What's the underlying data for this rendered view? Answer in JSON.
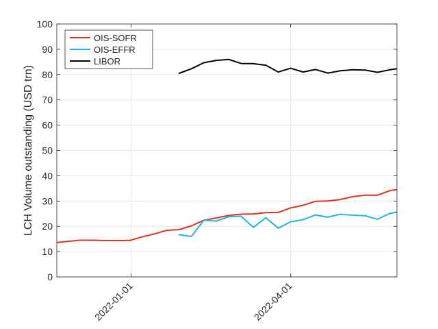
{
  "chart_data": {
    "type": "line",
    "ylabel": "LCH Volume outstanding (USD trn)",
    "xlabel": "",
    "ylim": [
      0,
      100
    ],
    "yticks": [
      0,
      10,
      20,
      30,
      40,
      50,
      60,
      70,
      80,
      90,
      100
    ],
    "xlim": [
      "2021-11-20",
      "2022-05-31"
    ],
    "xticks": [
      "2022-01-01",
      "2022-04-01"
    ],
    "grid": true,
    "legend_position": "top-left",
    "series": [
      {
        "name": "OIS-SOFR",
        "color": "#e0301e",
        "points": [
          [
            "2021-11-19",
            13.5
          ],
          [
            "2021-11-26",
            14.0
          ],
          [
            "2021-12-03",
            14.5
          ],
          [
            "2021-12-10",
            14.5
          ],
          [
            "2021-12-17",
            14.4
          ],
          [
            "2021-12-24",
            14.4
          ],
          [
            "2021-12-31",
            14.4
          ],
          [
            "2022-01-07",
            15.8
          ],
          [
            "2022-01-14",
            17.0
          ],
          [
            "2022-01-21",
            18.4
          ],
          [
            "2022-01-28",
            18.7
          ],
          [
            "2022-02-04",
            20.2
          ],
          [
            "2022-02-11",
            22.4
          ],
          [
            "2022-02-18",
            23.3
          ],
          [
            "2022-02-25",
            24.3
          ],
          [
            "2022-03-04",
            24.8
          ],
          [
            "2022-03-11",
            24.9
          ],
          [
            "2022-03-18",
            25.4
          ],
          [
            "2022-03-25",
            25.5
          ],
          [
            "2022-04-01",
            27.3
          ],
          [
            "2022-04-08",
            28.3
          ],
          [
            "2022-04-15",
            29.9
          ],
          [
            "2022-04-22",
            30.0
          ],
          [
            "2022-04-29",
            30.6
          ],
          [
            "2022-05-06",
            31.7
          ],
          [
            "2022-05-13",
            32.3
          ],
          [
            "2022-05-20",
            32.3
          ],
          [
            "2022-05-27",
            34.1
          ],
          [
            "2022-06-03",
            34.9
          ]
        ]
      },
      {
        "name": "OIS-EFFR",
        "color": "#1fb4e6",
        "points": [
          [
            "2022-01-28",
            16.7
          ],
          [
            "2022-02-04",
            16.0
          ],
          [
            "2022-02-11",
            22.4
          ],
          [
            "2022-02-18",
            22.1
          ],
          [
            "2022-02-25",
            23.8
          ],
          [
            "2022-03-04",
            24.0
          ],
          [
            "2022-03-11",
            19.6
          ],
          [
            "2022-03-18",
            23.4
          ],
          [
            "2022-03-25",
            19.3
          ],
          [
            "2022-04-01",
            21.8
          ],
          [
            "2022-04-08",
            22.6
          ],
          [
            "2022-04-15",
            24.5
          ],
          [
            "2022-04-22",
            23.6
          ],
          [
            "2022-04-29",
            24.8
          ],
          [
            "2022-05-06",
            24.4
          ],
          [
            "2022-05-13",
            24.2
          ],
          [
            "2022-05-20",
            22.8
          ],
          [
            "2022-05-27",
            25.1
          ],
          [
            "2022-06-03",
            26.0
          ]
        ]
      },
      {
        "name": "LIBOR",
        "color": "#000000",
        "points": [
          [
            "2022-01-28",
            80.5
          ],
          [
            "2022-02-04",
            82.3
          ],
          [
            "2022-02-11",
            84.7
          ],
          [
            "2022-02-18",
            85.6
          ],
          [
            "2022-02-25",
            86.0
          ],
          [
            "2022-03-04",
            84.4
          ],
          [
            "2022-03-11",
            84.3
          ],
          [
            "2022-03-18",
            83.7
          ],
          [
            "2022-03-25",
            81.0
          ],
          [
            "2022-04-01",
            82.5
          ],
          [
            "2022-04-08",
            81.0
          ],
          [
            "2022-04-15",
            82.0
          ],
          [
            "2022-04-22",
            80.6
          ],
          [
            "2022-04-29",
            81.5
          ],
          [
            "2022-05-06",
            81.9
          ],
          [
            "2022-05-13",
            81.8
          ],
          [
            "2022-05-20",
            80.9
          ],
          [
            "2022-05-27",
            81.9
          ],
          [
            "2022-06-03",
            82.6
          ]
        ]
      }
    ]
  }
}
